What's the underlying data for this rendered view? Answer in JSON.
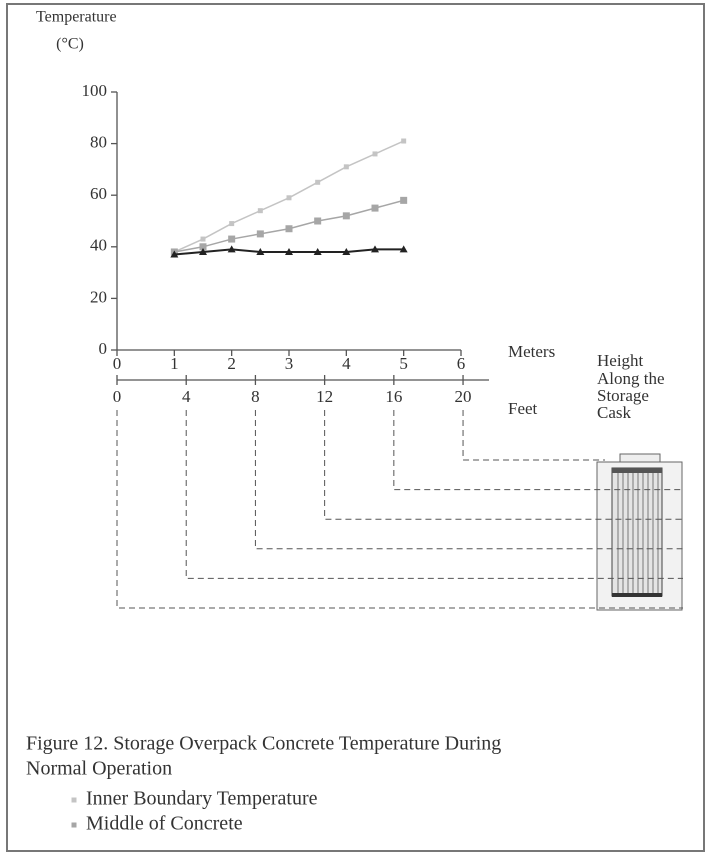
{
  "chart_data": {
    "type": "line",
    "y_label": [
      "Temperature",
      "(°C)"
    ],
    "x_label": "Meters",
    "x2_label": "Feet",
    "side_label": [
      "Height",
      "Along the",
      "Storage",
      "Cask"
    ],
    "caption": [
      "Figure 12.  Storage Overpack Concrete Temperature During",
      "Normal Operation"
    ],
    "x": [
      1,
      1.5,
      2,
      2.5,
      3,
      3.5,
      4,
      4.5,
      5
    ],
    "xlim": [
      0,
      6
    ],
    "xticks": [
      0,
      1,
      2,
      3,
      4,
      5,
      6
    ],
    "x2lim": [
      0,
      21.5
    ],
    "x2ticks": [
      0,
      4,
      8,
      12,
      16,
      20
    ],
    "ylim": [
      0,
      100
    ],
    "yticks": [
      0,
      20,
      40,
      60,
      80,
      100
    ],
    "series": [
      {
        "name": "Inner Boundary Temperature",
        "color": "#c4c4c4",
        "marker": "small-square",
        "values": [
          38,
          43,
          49,
          54,
          59,
          65,
          71,
          76,
          81
        ]
      },
      {
        "name": "Middle of Concrete",
        "color": "#a6a6a6",
        "marker": "square",
        "values": [
          38,
          40,
          43,
          45,
          47,
          50,
          52,
          55,
          58
        ]
      },
      {
        "color": "#222222",
        "marker": "triangle",
        "values": [
          37,
          38,
          39,
          38,
          38,
          38,
          38,
          39,
          39
        ]
      }
    ]
  }
}
